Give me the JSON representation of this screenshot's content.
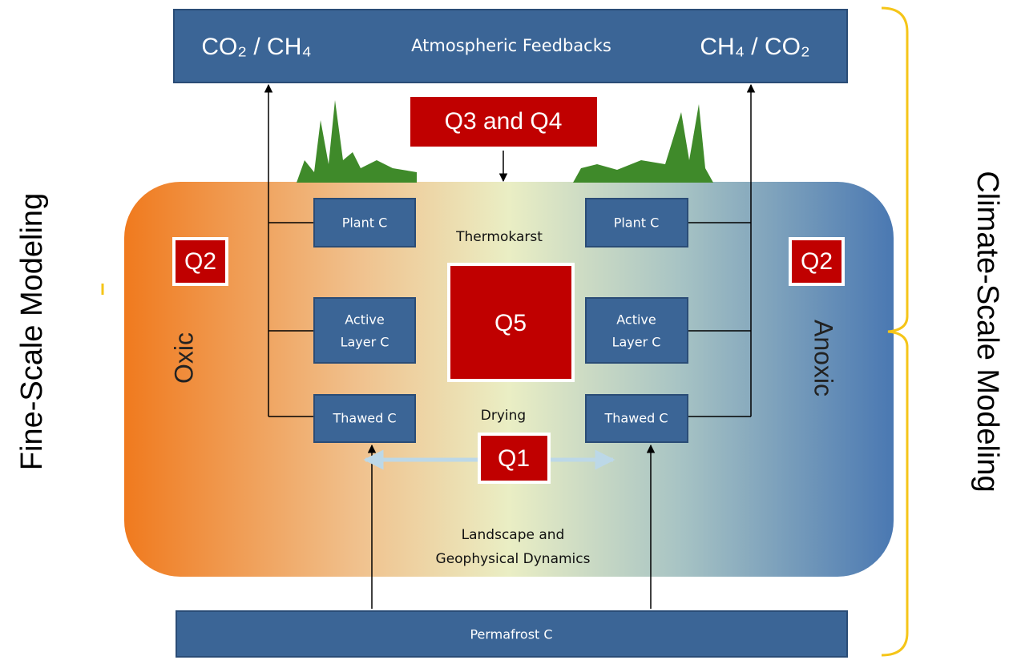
{
  "atmosphere": {
    "left": "CO₂ / CH₄",
    "title": "Atmospheric Feedbacks",
    "right": "CH₄ / CO₂"
  },
  "questions": {
    "top": "Q3 and Q4",
    "left": "Q2",
    "right": "Q2",
    "center": "Q5",
    "bottom": "Q1"
  },
  "left_pools": [
    "Plant C",
    [
      "Active",
      "Layer C"
    ],
    "Thawed C"
  ],
  "right_pools": [
    "Plant C",
    [
      "Active",
      "Layer C"
    ],
    "Thawed C"
  ],
  "processes": {
    "top": "Thermokarst",
    "middle": "Drying",
    "bottom": [
      "Landscape and",
      "Geophysical Dynamics"
    ]
  },
  "gradient": {
    "left": "Oxic",
    "right": "Anoxic"
  },
  "permafrost": "Permafrost C",
  "scales": {
    "left": "Fine-Scale Modeling",
    "right": "Climate-Scale Modeling"
  }
}
